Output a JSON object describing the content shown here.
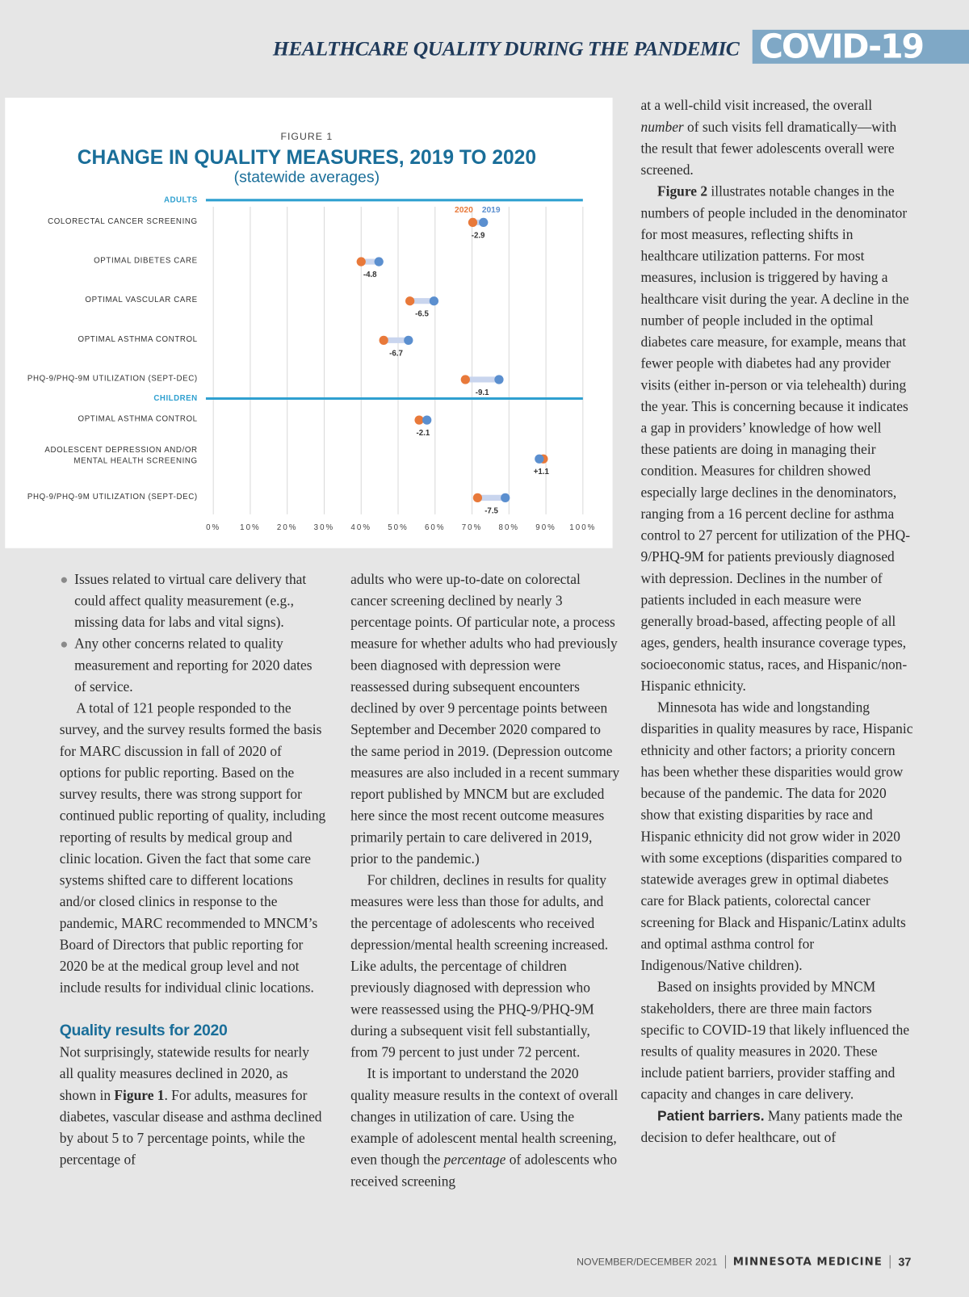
{
  "header": {
    "kicker": "HEALTHCARE QUALITY DURING THE PANDEMIC",
    "badge": "COVID-19"
  },
  "chart_data": {
    "type": "dumbbell",
    "figure_label": "FIGURE 1",
    "title": "CHANGE IN QUALITY MEASURES, 2019 TO 2020",
    "subtitle": "(statewide averages)",
    "groups": [
      {
        "name": "ADULTS",
        "categories": [
          "COLORECTAL CANCER SCREENING",
          "OPTIMAL DIBETES CARE",
          "OPTIMAL VASCULAR CARE",
          "OPTIMAL ASTHMA CONTROL",
          "PHQ-9/PHQ-9M UTILIZATION (SEPT-DEC)"
        ]
      },
      {
        "name": "CHILDREN",
        "categories": [
          "OPTIMAL ASTHMA CONTROL",
          [
            "ADOLESCENT DEPRESSION AND/OR",
            "MENTAL HEALTH SCREENING"
          ],
          "PHQ-9/PHQ-9M UTILIZATION (SEPT-DEC)"
        ]
      }
    ],
    "series": [
      {
        "name": "2020",
        "color": "#e8793a",
        "values": [
          [
            70.2,
            40.0,
            53.2,
            46.1,
            68.2
          ],
          [
            55.7,
            89.3,
            71.5
          ]
        ]
      },
      {
        "name": "2019",
        "color": "#5b8fcf",
        "values": [
          [
            73.1,
            44.8,
            59.7,
            52.8,
            77.3
          ],
          [
            57.8,
            88.2,
            79.0
          ]
        ]
      }
    ],
    "change": {
      "values": [
        [
          -2.9,
          -4.8,
          -6.5,
          -6.7,
          -9.1
        ],
        [
          -2.1,
          1.1,
          -7.5
        ]
      ],
      "value_labels": [
        [
          "-2.9",
          "-4.8",
          "-6.5",
          "-6.7",
          "-9.1"
        ],
        [
          "-2.1",
          "+1.1",
          "-7.5"
        ]
      ]
    },
    "xlim": [
      0,
      100
    ],
    "xticks": [
      {
        "value": 0,
        "label": "0%"
      },
      {
        "value": 10,
        "label": "10%"
      },
      {
        "value": 20,
        "label": "20%"
      },
      {
        "value": 30,
        "label": "30%"
      },
      {
        "value": 40,
        "label": "40%"
      },
      {
        "value": 50,
        "label": "50%"
      },
      {
        "value": 60,
        "label": "60%"
      },
      {
        "value": 70,
        "label": "70%"
      },
      {
        "value": 80,
        "label": "80%"
      },
      {
        "value": 90,
        "label": "90%"
      },
      {
        "value": 100,
        "label": "100%"
      }
    ],
    "grid": true
  },
  "columns": [
    [
      {
        "kind": "bullet",
        "runs": [
          "Issues related to virtual care delivery that could affect quality measurement (e.g., missing data for labs and vital signs)."
        ]
      },
      {
        "kind": "bullet",
        "runs": [
          "Any other concerns related to quality measurement and reporting for 2020 dates of service."
        ]
      },
      {
        "kind": "para",
        "runs": [
          "A total of 121 people responded to the survey, and the survey results formed the basis for MARC discussion in fall of 2020 of options for public reporting. Based on the survey results, there was strong support for continued public reporting of quality, including reporting of results by medical group and clinic location. Given the fact that some care systems shifted care to different locations and/or closed clinics in response to the pandemic, MARC recommended to MNCM’s Board of Directors that public reporting for 2020 be at the medical group level and not include results for individual clinic locations."
        ]
      },
      {
        "kind": "heading",
        "runs": [
          "Quality results for 2020"
        ]
      },
      {
        "kind": "plain",
        "runs": [
          "Not surprisingly, statewide results for nearly all quality measures declined in 2020, as shown in ",
          {
            "text": "Figure 1",
            "style": "bold"
          },
          ".  For adults, measures for diabetes, vascular disease and asthma declined by about 5 to 7 percentage points, while the percentage of"
        ]
      }
    ],
    [
      {
        "kind": "cont",
        "runs": [
          "adults who were up-to-date on colorectal cancer screening declined by nearly 3 percentage points. Of particular note, a process measure for whether adults who had previously been diagnosed with depression were reassessed during subsequent encounters declined by over 9 percentage points between September and December 2020 compared to the same period in 2019. (Depression outcome measures are also included in a recent summary report published by MNCM but are excluded here since the most recent outcome measures primarily pertain to care delivered in 2019, prior to the pandemic.)"
        ]
      },
      {
        "kind": "para",
        "runs": [
          "For children, declines in results for quality measures were less than those for adults, and the percentage of adolescents who received depression/mental health screening increased. Like adults, the percentage of children previously diagnosed with depression who were reassessed using the PHQ-9/PHQ-9M during a subsequent visit fell substantially, from 79 percent to just under 72 percent."
        ]
      },
      {
        "kind": "para",
        "runs": [
          "It is important to understand the 2020 quality measure results in the context of overall changes in utilization of care. Using the example of adolescent mental health screening, even though the ",
          {
            "text": "percentage",
            "style": "italic"
          },
          " of adolescents who received screening"
        ]
      }
    ],
    [
      {
        "kind": "cont",
        "runs": [
          "at a well-child visit increased, the overall ",
          {
            "text": "number",
            "style": "italic"
          },
          " of such visits fell dramatically—with the result that fewer adolescents overall were screened."
        ]
      },
      {
        "kind": "para",
        "runs": [
          {
            "text": "Figure 2",
            "style": "bold"
          },
          " illustrates notable changes in the numbers of people included in the denominator for most measures, reflecting shifts in healthcare utilization patterns. For most measures, inclusion is triggered by having a healthcare visit during the year. A decline in the number of people included in the optimal diabetes care measure, for example, means that fewer people with diabetes had any provider visits (either in-person or via telehealth) during the year. This is concerning because it indicates a gap in providers’ knowledge of how well these patients are doing in managing their condition. Measures for children showed especially large declines in the denominators, ranging from a 16 percent decline for asthma control to 27 percent for utilization of the PHQ-9/PHQ-9M for patients previously diagnosed with depression. Declines in the number of patients included in each measure were generally broad-based, affecting people of all ages, genders, health insurance coverage types, socioeconomic status, races, and Hispanic/non-Hispanic ethnicity."
        ]
      },
      {
        "kind": "para",
        "runs": [
          "Minnesota has wide and longstanding disparities in quality measures by race, Hispanic ethnicity and other factors; a priority concern has been whether these disparities would grow because of the pandemic. The data for 2020 show that existing disparities by race and Hispanic ethnicity did not grow wider in 2020 with some exceptions (disparities compared to statewide averages grew in optimal diabetes care for Black patients, colorectal cancer screening for Black and Hispanic/Latinx adults and optimal asthma control for Indigenous/Native children)."
        ]
      },
      {
        "kind": "para",
        "runs": [
          "Based on insights provided by MNCM stakeholders, there are three main factors specific to COVID-19 that likely influenced the results of quality measures in 2020. These include patient barriers, provider staffing and capacity and changes in care delivery."
        ]
      },
      {
        "kind": "para",
        "runs": [
          {
            "text": "Patient barriers.",
            "style": "label"
          },
          " Many patients made the decision to defer healthcare, out of"
        ]
      }
    ]
  ],
  "footer": {
    "issue": "NOVEMBER/DECEMBER 2021",
    "magazine": "MINNESOTA MEDICINE",
    "page": 37
  }
}
